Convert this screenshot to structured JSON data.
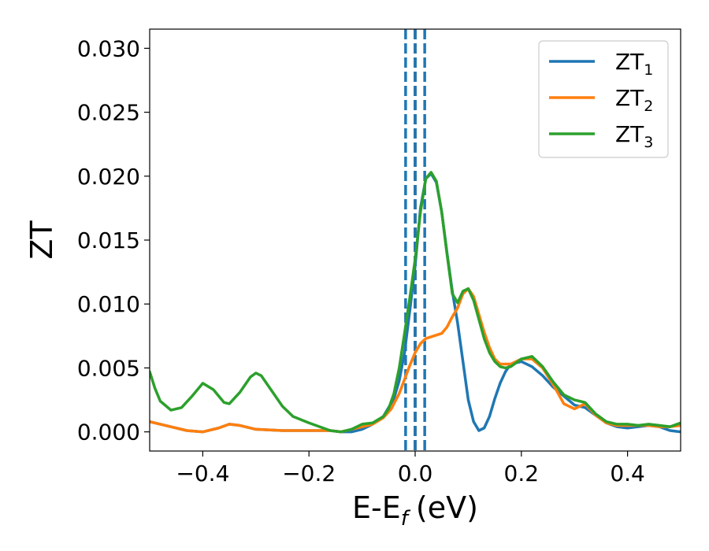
{
  "chart_data": {
    "type": "line",
    "xlabel": "E-E",
    "xlabel_sub": "f",
    "xlabel_unit": "(eV)",
    "ylabel": "ZT",
    "xlim": [
      -0.5,
      0.5
    ],
    "ylim": [
      -0.0015,
      0.0315
    ],
    "xticks": [
      -0.4,
      -0.2,
      0.0,
      0.2,
      0.4
    ],
    "xtick_labels": [
      "−0.4",
      "−0.2",
      "0.0",
      "0.2",
      "0.4"
    ],
    "yticks": [
      0.0,
      0.005,
      0.01,
      0.015,
      0.02,
      0.025,
      0.03
    ],
    "ytick_labels": [
      "0.000",
      "0.005",
      "0.010",
      "0.015",
      "0.020",
      "0.025",
      "0.030"
    ],
    "grid": false,
    "legend_position": "top-right",
    "vlines": [
      {
        "x": 0.0,
        "color": "#000000",
        "style": "dashed"
      },
      {
        "x": -0.018,
        "color": "#1f77b4",
        "style": "dashed"
      },
      {
        "x": 0.0,
        "color": "#1f77b4",
        "style": "dashed"
      },
      {
        "x": 0.018,
        "color": "#1f77b4",
        "style": "dashed"
      }
    ],
    "series": [
      {
        "name": "ZT",
        "subscript": "1",
        "color": "#1f77b4",
        "points": [
          [
            -0.5,
            0.0008
          ],
          [
            -0.46,
            0.0004
          ],
          [
            -0.43,
            0.0001
          ],
          [
            -0.4,
            0.0
          ],
          [
            -0.37,
            0.0003
          ],
          [
            -0.35,
            0.0006
          ],
          [
            -0.33,
            0.0005
          ],
          [
            -0.3,
            0.0002
          ],
          [
            -0.25,
            0.0001
          ],
          [
            -0.2,
            0.0001
          ],
          [
            -0.16,
            0.0001
          ],
          [
            -0.14,
            0.0
          ],
          [
            -0.12,
            0.0
          ],
          [
            -0.1,
            0.0002
          ],
          [
            -0.08,
            0.0006
          ],
          [
            -0.06,
            0.0012
          ],
          [
            -0.04,
            0.0026
          ],
          [
            -0.03,
            0.004
          ],
          [
            -0.02,
            0.0062
          ],
          [
            -0.01,
            0.0095
          ],
          [
            0.0,
            0.013
          ],
          [
            0.01,
            0.0175
          ],
          [
            0.02,
            0.0198
          ],
          [
            0.03,
            0.0202
          ],
          [
            0.04,
            0.0195
          ],
          [
            0.05,
            0.0172
          ],
          [
            0.06,
            0.014
          ],
          [
            0.07,
            0.011
          ],
          [
            0.08,
            0.0085
          ],
          [
            0.09,
            0.0055
          ],
          [
            0.1,
            0.0025
          ],
          [
            0.11,
            0.0008
          ],
          [
            0.12,
            0.0001
          ],
          [
            0.13,
            0.0003
          ],
          [
            0.14,
            0.0012
          ],
          [
            0.15,
            0.0026
          ],
          [
            0.16,
            0.0038
          ],
          [
            0.17,
            0.0047
          ],
          [
            0.18,
            0.0053
          ],
          [
            0.2,
            0.0055
          ],
          [
            0.22,
            0.0051
          ],
          [
            0.24,
            0.0044
          ],
          [
            0.26,
            0.0035
          ],
          [
            0.28,
            0.0028
          ],
          [
            0.3,
            0.0021
          ],
          [
            0.32,
            0.0019
          ],
          [
            0.34,
            0.0013
          ],
          [
            0.36,
            0.0007
          ],
          [
            0.38,
            0.0004
          ],
          [
            0.4,
            0.0003
          ],
          [
            0.42,
            0.0004
          ],
          [
            0.44,
            0.0005
          ],
          [
            0.46,
            0.0004
          ],
          [
            0.48,
            0.0001
          ],
          [
            0.5,
            0.0
          ]
        ]
      },
      {
        "name": "ZT",
        "subscript": "2",
        "color": "#ff7f0e",
        "points": [
          [
            -0.5,
            0.0008
          ],
          [
            -0.46,
            0.0004
          ],
          [
            -0.43,
            0.0001
          ],
          [
            -0.4,
            0.0
          ],
          [
            -0.37,
            0.0003
          ],
          [
            -0.35,
            0.0006
          ],
          [
            -0.33,
            0.0005
          ],
          [
            -0.3,
            0.0002
          ],
          [
            -0.25,
            0.0001
          ],
          [
            -0.2,
            0.0001
          ],
          [
            -0.16,
            0.0001
          ],
          [
            -0.14,
            0.0
          ],
          [
            -0.12,
            0.0002
          ],
          [
            -0.1,
            0.0004
          ],
          [
            -0.08,
            0.0006
          ],
          [
            -0.06,
            0.0011
          ],
          [
            -0.045,
            0.0018
          ],
          [
            -0.03,
            0.003
          ],
          [
            -0.02,
            0.0041
          ],
          [
            -0.01,
            0.0052
          ],
          [
            0.0,
            0.0062
          ],
          [
            0.01,
            0.0069
          ],
          [
            0.02,
            0.0073
          ],
          [
            0.035,
            0.0075
          ],
          [
            0.05,
            0.0077
          ],
          [
            0.06,
            0.0082
          ],
          [
            0.07,
            0.009
          ],
          [
            0.08,
            0.0097
          ],
          [
            0.09,
            0.0108
          ],
          [
            0.1,
            0.0112
          ],
          [
            0.11,
            0.0106
          ],
          [
            0.12,
            0.0092
          ],
          [
            0.13,
            0.0078
          ],
          [
            0.14,
            0.0066
          ],
          [
            0.15,
            0.0057
          ],
          [
            0.16,
            0.0053
          ],
          [
            0.18,
            0.0053
          ],
          [
            0.2,
            0.0057
          ],
          [
            0.22,
            0.0057
          ],
          [
            0.24,
            0.005
          ],
          [
            0.26,
            0.0037
          ],
          [
            0.28,
            0.0022
          ],
          [
            0.3,
            0.0018
          ],
          [
            0.32,
            0.0022
          ],
          [
            0.34,
            0.0013
          ],
          [
            0.36,
            0.0007
          ],
          [
            0.38,
            0.0005
          ],
          [
            0.4,
            0.0005
          ],
          [
            0.42,
            0.0005
          ],
          [
            0.44,
            0.0005
          ],
          [
            0.46,
            0.0004
          ],
          [
            0.48,
            0.0004
          ],
          [
            0.5,
            0.0005
          ]
        ]
      },
      {
        "name": "ZT",
        "subscript": "3",
        "color": "#2ca02c",
        "points": [
          [
            -0.5,
            0.0047
          ],
          [
            -0.49,
            0.0034
          ],
          [
            -0.48,
            0.0024
          ],
          [
            -0.46,
            0.0017
          ],
          [
            -0.44,
            0.0019
          ],
          [
            -0.42,
            0.0028
          ],
          [
            -0.4,
            0.0038
          ],
          [
            -0.38,
            0.0033
          ],
          [
            -0.36,
            0.0023
          ],
          [
            -0.35,
            0.0022
          ],
          [
            -0.33,
            0.0031
          ],
          [
            -0.31,
            0.0043
          ],
          [
            -0.3,
            0.0046
          ],
          [
            -0.29,
            0.0044
          ],
          [
            -0.27,
            0.0032
          ],
          [
            -0.25,
            0.002
          ],
          [
            -0.23,
            0.0012
          ],
          [
            -0.2,
            0.0007
          ],
          [
            -0.18,
            0.0004
          ],
          [
            -0.16,
            0.0001
          ],
          [
            -0.14,
            0.0
          ],
          [
            -0.12,
            0.0002
          ],
          [
            -0.1,
            0.0006
          ],
          [
            -0.08,
            0.0007
          ],
          [
            -0.06,
            0.0012
          ],
          [
            -0.05,
            0.0018
          ],
          [
            -0.04,
            0.003
          ],
          [
            -0.03,
            0.005
          ],
          [
            -0.02,
            0.0077
          ],
          [
            -0.01,
            0.0105
          ],
          [
            0.0,
            0.0135
          ],
          [
            0.01,
            0.0172
          ],
          [
            0.02,
            0.0198
          ],
          [
            0.03,
            0.0203
          ],
          [
            0.04,
            0.0196
          ],
          [
            0.05,
            0.0172
          ],
          [
            0.06,
            0.0139
          ],
          [
            0.07,
            0.0108
          ],
          [
            0.08,
            0.0101
          ],
          [
            0.09,
            0.011
          ],
          [
            0.1,
            0.0112
          ],
          [
            0.11,
            0.0103
          ],
          [
            0.12,
            0.0088
          ],
          [
            0.13,
            0.0073
          ],
          [
            0.14,
            0.0062
          ],
          [
            0.15,
            0.0055
          ],
          [
            0.16,
            0.0051
          ],
          [
            0.17,
            0.005
          ],
          [
            0.18,
            0.0051
          ],
          [
            0.2,
            0.0057
          ],
          [
            0.22,
            0.0059
          ],
          [
            0.24,
            0.0051
          ],
          [
            0.26,
            0.0039
          ],
          [
            0.28,
            0.0029
          ],
          [
            0.3,
            0.0025
          ],
          [
            0.32,
            0.0023
          ],
          [
            0.34,
            0.0014
          ],
          [
            0.36,
            0.0008
          ],
          [
            0.38,
            0.0006
          ],
          [
            0.4,
            0.0006
          ],
          [
            0.42,
            0.0005
          ],
          [
            0.44,
            0.0006
          ],
          [
            0.46,
            0.0005
          ],
          [
            0.48,
            0.0004
          ],
          [
            0.5,
            0.0007
          ]
        ]
      }
    ]
  }
}
